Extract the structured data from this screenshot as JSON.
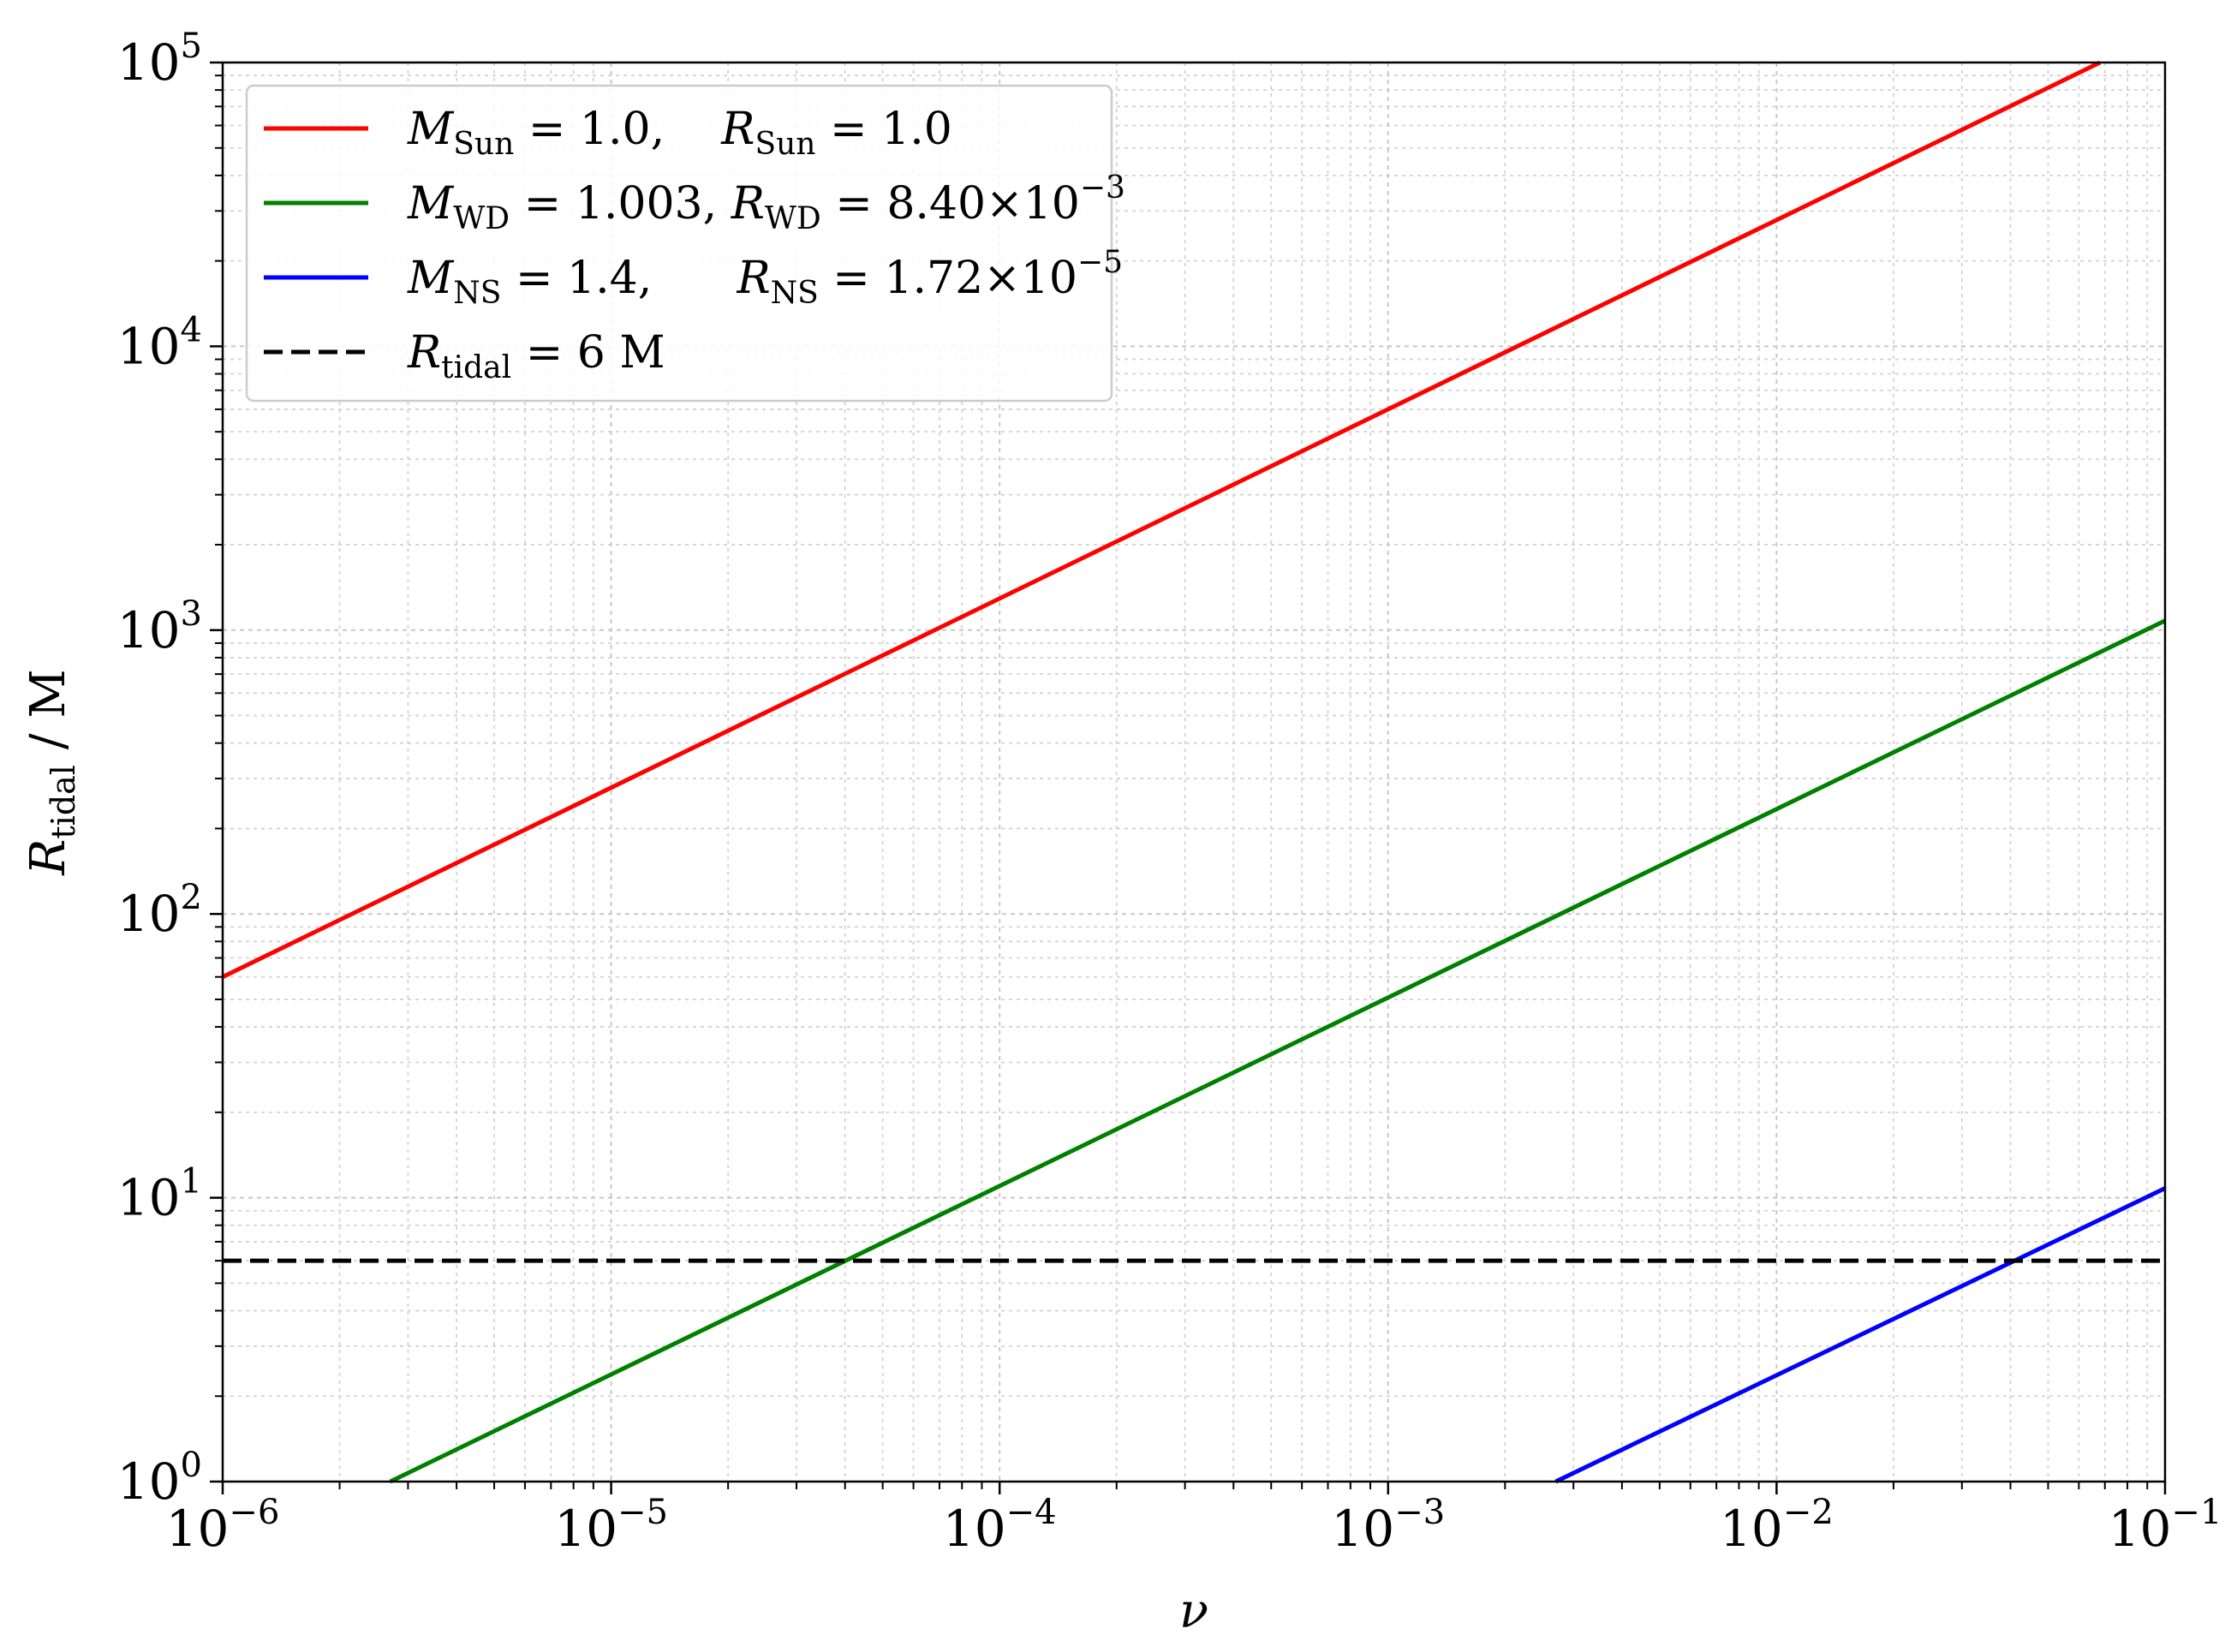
{
  "chart_data": {
    "type": "line",
    "xscale": "log",
    "yscale": "log",
    "xlim": [
      1e-06,
      0.1
    ],
    "ylim": [
      1,
      100000
    ],
    "grid": true,
    "legend_position": "top-left",
    "xlabel": {
      "main": "ν"
    },
    "ylabel": {
      "main": "R",
      "sub": "tidal",
      "tail": " / M"
    },
    "xticks": [
      {
        "value": 1e-06,
        "base": "10",
        "exp": "−6"
      },
      {
        "value": 1e-05,
        "base": "10",
        "exp": "−5"
      },
      {
        "value": 0.0001,
        "base": "10",
        "exp": "−4"
      },
      {
        "value": 0.001,
        "base": "10",
        "exp": "−3"
      },
      {
        "value": 0.01,
        "base": "10",
        "exp": "−2"
      },
      {
        "value": 0.1,
        "base": "10",
        "exp": "−1"
      }
    ],
    "yticks": [
      {
        "value": 1,
        "base": "10",
        "exp": "0"
      },
      {
        "value": 10,
        "base": "10",
        "exp": "1"
      },
      {
        "value": 100,
        "base": "10",
        "exp": "2"
      },
      {
        "value": 1000,
        "base": "10",
        "exp": "3"
      },
      {
        "value": 10000,
        "base": "10",
        "exp": "4"
      },
      {
        "value": 100000,
        "base": "10",
        "exp": "5"
      }
    ],
    "series": [
      {
        "key": "sun",
        "color": "#ff0000",
        "dash": "solid",
        "x": [
          1e-06,
          0.068
        ],
        "y": [
          60,
          100000
        ],
        "legend": [
          {
            "t": "M",
            "i": true
          },
          {
            "t": "Sun",
            "sub": true
          },
          {
            "t": " = 1.0,    "
          },
          {
            "t": "R",
            "i": true
          },
          {
            "t": "Sun",
            "sub": true
          },
          {
            "t": " = 1.0"
          }
        ]
      },
      {
        "key": "wd",
        "color": "#008000",
        "dash": "solid",
        "x": [
          2.7e-06,
          0.1
        ],
        "y": [
          1,
          1080
        ],
        "legend": [
          {
            "t": "M",
            "i": true
          },
          {
            "t": "WD",
            "sub": true
          },
          {
            "t": " = 1.003, "
          },
          {
            "t": "R",
            "i": true
          },
          {
            "t": "WD",
            "sub": true
          },
          {
            "t": " = 8.40×10"
          },
          {
            "t": "−3",
            "sup": true
          }
        ]
      },
      {
        "key": "ns",
        "color": "#0000ff",
        "dash": "solid",
        "x": [
          0.0027,
          0.1
        ],
        "y": [
          1,
          10.8
        ],
        "legend": [
          {
            "t": "M",
            "i": true
          },
          {
            "t": "NS",
            "sub": true
          },
          {
            "t": " = 1.4,      "
          },
          {
            "t": "R",
            "i": true
          },
          {
            "t": "NS",
            "sub": true
          },
          {
            "t": " = 1.72×10"
          },
          {
            "t": "−5",
            "sup": true
          }
        ]
      },
      {
        "key": "tidal",
        "color": "#000000",
        "dash": "dashed",
        "x": [
          1e-06,
          0.1
        ],
        "y": [
          6,
          6
        ],
        "legend": [
          {
            "t": "R",
            "i": true
          },
          {
            "t": "tidal",
            "sub": true
          },
          {
            "t": " = 6 M"
          }
        ]
      }
    ]
  }
}
